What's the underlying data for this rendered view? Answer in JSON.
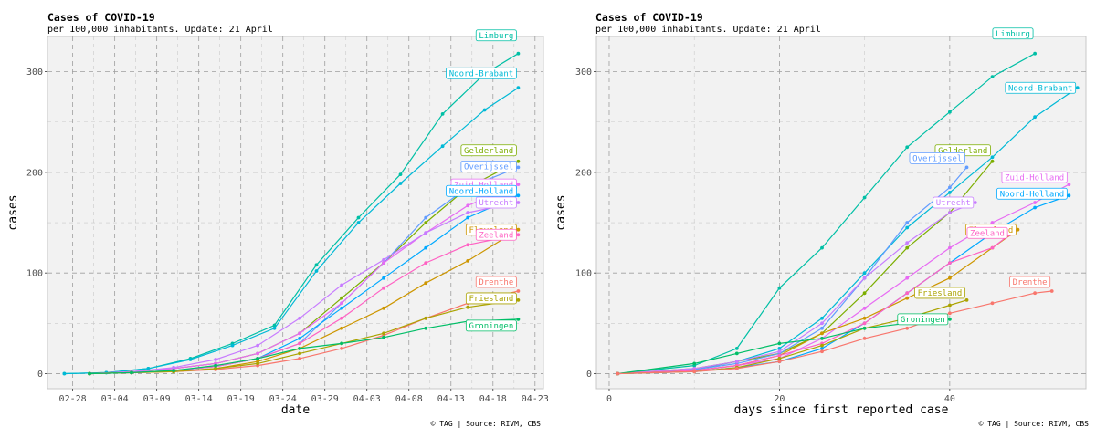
{
  "caption": "© TAG | Source: RIVM, CBS",
  "chart_data": [
    {
      "type": "line",
      "title": "Cases of COVID-19",
      "subtitle": "per 100,000 inhabitants. Update: 21 April",
      "xlabel": "date",
      "ylabel": "cases",
      "x_type": "date",
      "xlim": [
        "2020-02-25",
        "2020-04-24"
      ],
      "ylim": [
        -15,
        335
      ],
      "xticks": [
        "2020-02-28",
        "2020-03-04",
        "2020-03-09",
        "2020-03-14",
        "2020-03-19",
        "2020-03-24",
        "2020-03-29",
        "2020-04-03",
        "2020-04-08",
        "2020-04-13",
        "2020-04-18",
        "2020-04-23"
      ],
      "xtick_labels": [
        "02-28",
        "03-04",
        "03-09",
        "03-14",
        "03-19",
        "03-24",
        "03-29",
        "04-03",
        "04-08",
        "04-13",
        "04-18",
        "04-23"
      ],
      "yticks": [
        0,
        100,
        200,
        300
      ],
      "grid": true,
      "series": [
        {
          "name": "Limburg",
          "color": "#00BFA5",
          "x": [
            "2020-02-27",
            "2020-03-03",
            "2020-03-08",
            "2020-03-13",
            "2020-03-18",
            "2020-03-23",
            "2020-03-28",
            "2020-04-02",
            "2020-04-07",
            "2020-04-12",
            "2020-04-17",
            "2020-04-21"
          ],
          "y": [
            0,
            1,
            5,
            15,
            30,
            48,
            108,
            155,
            198,
            258,
            298,
            318
          ]
        },
        {
          "name": "Noord-Brabant",
          "color": "#00B9D6",
          "x": [
            "2020-02-27",
            "2020-03-03",
            "2020-03-08",
            "2020-03-13",
            "2020-03-18",
            "2020-03-23",
            "2020-03-28",
            "2020-04-02",
            "2020-04-07",
            "2020-04-12",
            "2020-04-17",
            "2020-04-21"
          ],
          "y": [
            0,
            1,
            5,
            14,
            28,
            45,
            102,
            150,
            189,
            226,
            262,
            284
          ]
        },
        {
          "name": "Gelderland",
          "color": "#7CAE00",
          "x": [
            "2020-03-01",
            "2020-03-06",
            "2020-03-11",
            "2020-03-16",
            "2020-03-21",
            "2020-03-26",
            "2020-03-31",
            "2020-04-05",
            "2020-04-10",
            "2020-04-15",
            "2020-04-21"
          ],
          "y": [
            0,
            2,
            5,
            10,
            20,
            40,
            75,
            110,
            150,
            185,
            211
          ]
        },
        {
          "name": "Overijssel",
          "color": "#619CFF",
          "x": [
            "2020-03-01",
            "2020-03-06",
            "2020-03-11",
            "2020-03-16",
            "2020-03-21",
            "2020-03-26",
            "2020-03-31",
            "2020-04-05",
            "2020-04-10",
            "2020-04-15",
            "2020-04-21"
          ],
          "y": [
            0,
            1,
            3,
            7,
            15,
            30,
            70,
            110,
            155,
            185,
            205
          ]
        },
        {
          "name": "Zuid-Holland",
          "color": "#E76BF3",
          "x": [
            "2020-03-01",
            "2020-03-06",
            "2020-03-11",
            "2020-03-16",
            "2020-03-21",
            "2020-03-26",
            "2020-03-31",
            "2020-04-05",
            "2020-04-10",
            "2020-04-15",
            "2020-04-21"
          ],
          "y": [
            0,
            2,
            5,
            10,
            20,
            40,
            70,
            110,
            140,
            167,
            188
          ]
        },
        {
          "name": "Noord-Holland",
          "color": "#00A9FF",
          "x": [
            "2020-03-01",
            "2020-03-06",
            "2020-03-11",
            "2020-03-16",
            "2020-03-21",
            "2020-03-26",
            "2020-03-31",
            "2020-04-05",
            "2020-04-10",
            "2020-04-15",
            "2020-04-21"
          ],
          "y": [
            0,
            1,
            3,
            7,
            15,
            35,
            65,
            95,
            125,
            155,
            177
          ]
        },
        {
          "name": "Utrecht",
          "color": "#C77CFF",
          "x": [
            "2020-03-01",
            "2020-03-06",
            "2020-03-11",
            "2020-03-16",
            "2020-03-21",
            "2020-03-26",
            "2020-03-31",
            "2020-04-05",
            "2020-04-10",
            "2020-04-15",
            "2020-04-21"
          ],
          "y": [
            0,
            2,
            6,
            14,
            28,
            55,
            88,
            113,
            140,
            160,
            170
          ]
        },
        {
          "name": "Flevoland",
          "color": "#CD9600",
          "x": [
            "2020-03-01",
            "2020-03-06",
            "2020-03-11",
            "2020-03-16",
            "2020-03-21",
            "2020-03-26",
            "2020-03-31",
            "2020-04-05",
            "2020-04-10",
            "2020-04-15",
            "2020-04-21"
          ],
          "y": [
            0,
            1,
            2,
            5,
            12,
            25,
            45,
            65,
            90,
            112,
            143
          ]
        },
        {
          "name": "Zeeland",
          "color": "#FF61C3",
          "x": [
            "2020-03-01",
            "2020-03-06",
            "2020-03-11",
            "2020-03-16",
            "2020-03-21",
            "2020-03-26",
            "2020-03-31",
            "2020-04-05",
            "2020-04-10",
            "2020-04-15",
            "2020-04-21"
          ],
          "y": [
            0,
            1,
            3,
            7,
            15,
            30,
            55,
            85,
            110,
            128,
            138
          ]
        },
        {
          "name": "Drenthe",
          "color": "#F8766D",
          "x": [
            "2020-03-01",
            "2020-03-06",
            "2020-03-11",
            "2020-03-16",
            "2020-03-21",
            "2020-03-26",
            "2020-03-31",
            "2020-04-05",
            "2020-04-10",
            "2020-04-15",
            "2020-04-21"
          ],
          "y": [
            0,
            1,
            2,
            4,
            8,
            15,
            25,
            38,
            55,
            70,
            82
          ]
        },
        {
          "name": "Friesland",
          "color": "#ABA300",
          "x": [
            "2020-03-01",
            "2020-03-06",
            "2020-03-11",
            "2020-03-16",
            "2020-03-21",
            "2020-03-26",
            "2020-03-31",
            "2020-04-05",
            "2020-04-10",
            "2020-04-15",
            "2020-04-21"
          ],
          "y": [
            0,
            1,
            2,
            5,
            10,
            20,
            30,
            40,
            55,
            66,
            73
          ]
        },
        {
          "name": "Groningen",
          "color": "#00BE67",
          "x": [
            "2020-03-01",
            "2020-03-06",
            "2020-03-11",
            "2020-03-16",
            "2020-03-21",
            "2020-03-26",
            "2020-03-31",
            "2020-04-05",
            "2020-04-10",
            "2020-04-15",
            "2020-04-21"
          ],
          "y": [
            0,
            1,
            3,
            8,
            15,
            25,
            30,
            36,
            45,
            52,
            54
          ]
        }
      ]
    },
    {
      "type": "line",
      "title": "Cases of COVID-19",
      "subtitle": "per 100,000 inhabitants. Update: 21 April",
      "xlabel": "days since first reported case",
      "ylabel": "cases",
      "x_type": "number",
      "xlim": [
        -1.5,
        56
      ],
      "ylim": [
        -15,
        335
      ],
      "xticks": [
        0,
        20,
        40
      ],
      "yticks": [
        0,
        100,
        200,
        300
      ],
      "grid": true,
      "series": [
        {
          "name": "Limburg",
          "color": "#00BFA5",
          "x": [
            1,
            10,
            15,
            20,
            25,
            30,
            35,
            40,
            45,
            50
          ],
          "y": [
            0,
            8,
            25,
            85,
            125,
            175,
            225,
            260,
            295,
            318
          ]
        },
        {
          "name": "Noord-Brabant",
          "color": "#00B9D6",
          "x": [
            1,
            10,
            15,
            20,
            25,
            30,
            35,
            40,
            45,
            50,
            55
          ],
          "y": [
            0,
            4,
            12,
            25,
            55,
            100,
            145,
            180,
            215,
            255,
            284
          ]
        },
        {
          "name": "Gelderland",
          "color": "#7CAE00",
          "x": [
            1,
            10,
            15,
            20,
            25,
            30,
            35,
            40,
            45
          ],
          "y": [
            0,
            5,
            12,
            20,
            40,
            80,
            125,
            160,
            211
          ]
        },
        {
          "name": "Overijssel",
          "color": "#619CFF",
          "x": [
            1,
            10,
            15,
            20,
            25,
            30,
            35,
            40,
            42
          ],
          "y": [
            0,
            4,
            10,
            20,
            45,
            95,
            150,
            185,
            205
          ]
        },
        {
          "name": "Zuid-Holland",
          "color": "#E76BF3",
          "x": [
            1,
            10,
            15,
            20,
            25,
            30,
            35,
            40,
            45,
            50,
            54
          ],
          "y": [
            0,
            3,
            8,
            15,
            35,
            65,
            95,
            125,
            150,
            170,
            188
          ]
        },
        {
          "name": "Utrecht",
          "color": "#C77CFF",
          "x": [
            1,
            10,
            15,
            20,
            25,
            30,
            35,
            40,
            43
          ],
          "y": [
            0,
            5,
            12,
            22,
            50,
            95,
            130,
            160,
            170
          ]
        },
        {
          "name": "Noord-Holland",
          "color": "#00A9FF",
          "x": [
            1,
            10,
            15,
            20,
            25,
            30,
            35,
            40,
            45,
            50,
            54
          ],
          "y": [
            0,
            2,
            6,
            12,
            25,
            50,
            80,
            110,
            140,
            165,
            177
          ]
        },
        {
          "name": "Flevoland",
          "color": "#CD9600",
          "x": [
            1,
            10,
            15,
            20,
            25,
            30,
            35,
            40,
            45,
            48
          ],
          "y": [
            0,
            3,
            8,
            18,
            40,
            55,
            75,
            95,
            125,
            143
          ]
        },
        {
          "name": "Zeeland",
          "color": "#FF61C3",
          "x": [
            1,
            10,
            15,
            20,
            25,
            30,
            35,
            40,
            45,
            47
          ],
          "y": [
            0,
            3,
            8,
            18,
            30,
            50,
            80,
            110,
            125,
            138
          ]
        },
        {
          "name": "Friesland",
          "color": "#ABA300",
          "x": [
            1,
            10,
            15,
            20,
            25,
            30,
            35,
            40,
            42
          ],
          "y": [
            0,
            2,
            6,
            15,
            28,
            45,
            55,
            68,
            73
          ]
        },
        {
          "name": "Groningen",
          "color": "#00BE67",
          "x": [
            1,
            10,
            15,
            20,
            25,
            30,
            35,
            40
          ],
          "y": [
            0,
            10,
            20,
            30,
            35,
            45,
            50,
            54
          ]
        },
        {
          "name": "Drenthe",
          "color": "#F8766D",
          "x": [
            1,
            10,
            15,
            20,
            25,
            30,
            35,
            40,
            45,
            50,
            52
          ],
          "y": [
            0,
            2,
            5,
            12,
            22,
            35,
            45,
            60,
            70,
            80,
            82
          ]
        }
      ]
    }
  ]
}
